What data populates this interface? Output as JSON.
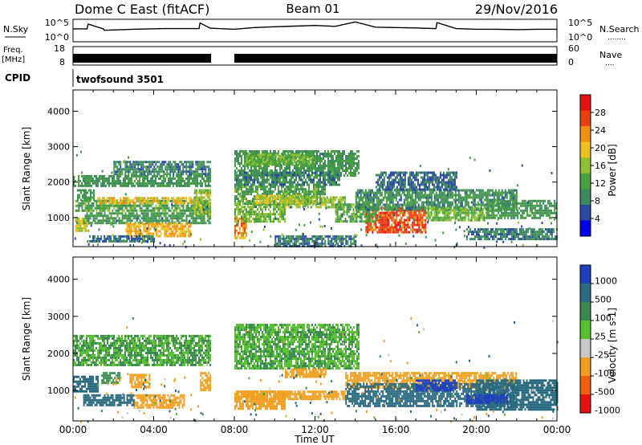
{
  "header": {
    "station": "Dome C East (fitACF)",
    "beam": "Beam 01",
    "date": "29/Nov/2016"
  },
  "side_labels": {
    "nsky": "N.Sky",
    "freq": "Freq.",
    "freq_unit": "[MHz]",
    "cpid": "CPID",
    "nsearch": "N.Search",
    "nave": "Nave",
    "dots": "........",
    "dots_short": "...."
  },
  "noise_panel": {
    "left_ticks": [
      "10^5",
      "10^0"
    ],
    "right_ticks": [
      "10^5",
      "10^0"
    ]
  },
  "freq_panel": {
    "left_ticks": [
      "18",
      "8"
    ],
    "right_ticks": [
      "60",
      "0"
    ]
  },
  "cpid_panel": {
    "label": "twofsound 3501"
  },
  "data_gap_hours": [
    6.85,
    8.0
  ],
  "chart_data": [
    {
      "type": "heatmap",
      "name": "power",
      "x_unit": "hours UT",
      "xlim": [
        0,
        24
      ],
      "ylabel": "Slant Range [km]",
      "ylim": [
        180,
        4600
      ],
      "y_ticks": [
        1000,
        2000,
        3000,
        4000
      ],
      "cb_title": "Power [dB]",
      "cb_range": [
        0,
        32
      ],
      "cb_ticks": [
        "4",
        "8",
        "12",
        "16",
        "20",
        "24",
        "28"
      ],
      "cb_tick_values": [
        4,
        8,
        12,
        16,
        20,
        24,
        28
      ],
      "colors": [
        "#0000ee",
        "#2a4aa0",
        "#3e8a60",
        "#48a040",
        "#90c030",
        "#f0c020",
        "#f09010",
        "#e84010",
        "#e81010"
      ],
      "regions": [
        {
          "t": [
            0.1,
            6.8
          ],
          "r": [
            1200,
            1500
          ],
          "v": 14
        },
        {
          "t": [
            1.2,
            6.4
          ],
          "r": [
            1380,
            1580
          ],
          "v": 22
        },
        {
          "t": [
            0.0,
            6.8
          ],
          "r": [
            1900,
            2200
          ],
          "v": 12
        },
        {
          "t": [
            2.0,
            6.8
          ],
          "r": [
            2200,
            2600
          ],
          "v": 10
        },
        {
          "t": [
            0.2,
            1.0
          ],
          "r": [
            1500,
            1800
          ],
          "v": 12
        },
        {
          "t": [
            0.1,
            0.8
          ],
          "r": [
            600,
            1000
          ],
          "v": 20
        },
        {
          "t": [
            0.5,
            6.8
          ],
          "r": [
            850,
            1150
          ],
          "v": 12
        },
        {
          "t": [
            2.6,
            5.8
          ],
          "r": [
            500,
            850
          ],
          "v": 24
        },
        {
          "t": [
            0.8,
            4.0
          ],
          "r": [
            300,
            500
          ],
          "v": 8
        },
        {
          "t": [
            6.0,
            6.8
          ],
          "r": [
            1100,
            1800
          ],
          "v": 18
        },
        {
          "t": [
            8.0,
            8.6
          ],
          "r": [
            400,
            1000
          ],
          "v": 26
        },
        {
          "t": [
            8.0,
            10.5
          ],
          "r": [
            900,
            1400
          ],
          "v": 16
        },
        {
          "t": [
            8.0,
            12.5
          ],
          "r": [
            1400,
            1900
          ],
          "v": 14
        },
        {
          "t": [
            9.0,
            11.2
          ],
          "r": [
            1400,
            1650
          ],
          "v": 20
        },
        {
          "t": [
            10.5,
            13.5
          ],
          "r": [
            1300,
            1600
          ],
          "v": 18
        },
        {
          "t": [
            8.0,
            14.2
          ],
          "r": [
            2200,
            2900
          ],
          "v": 12
        },
        {
          "t": [
            8.5,
            12.0
          ],
          "r": [
            2500,
            2800
          ],
          "v": 16
        },
        {
          "t": [
            8.0,
            13.2
          ],
          "r": [
            1900,
            2300
          ],
          "v": 10
        },
        {
          "t": [
            14.5,
            17.5
          ],
          "r": [
            600,
            1300
          ],
          "v": 30
        },
        {
          "t": [
            13.0,
            15.0
          ],
          "r": [
            900,
            1400
          ],
          "v": 14
        },
        {
          "t": [
            14.0,
            22.0
          ],
          "r": [
            1200,
            1800
          ],
          "v": 11
        },
        {
          "t": [
            17.5,
            20.5
          ],
          "r": [
            900,
            1300
          ],
          "v": 16
        },
        {
          "t": [
            20.5,
            24.0
          ],
          "r": [
            1000,
            1500
          ],
          "v": 12
        },
        {
          "t": [
            19.5,
            24.0
          ],
          "r": [
            400,
            700
          ],
          "v": 9
        },
        {
          "t": [
            15.0,
            19.0
          ],
          "r": [
            1800,
            2300
          ],
          "v": 8
        },
        {
          "t": [
            10.0,
            14.0
          ],
          "r": [
            200,
            500
          ],
          "v": 9
        }
      ],
      "scatter_rows": [
        200,
        300
      ]
    },
    {
      "type": "heatmap",
      "name": "velocity",
      "x_unit": "hours UT",
      "xlim": [
        0,
        24
      ],
      "xlabel": "Time UT",
      "x_ticks": [
        "00:00",
        "04:00",
        "08:00",
        "12:00",
        "16:00",
        "20:00",
        "00:00"
      ],
      "x_tick_hours": [
        0,
        4,
        8,
        12,
        16,
        20,
        24
      ],
      "ylabel": "Slant Range [km]",
      "ylim": [
        180,
        4600
      ],
      "y_ticks": [
        1000,
        2000,
        3000,
        4000
      ],
      "cb_title": "Velocity [m s-1]",
      "cb_ticks": [
        "1000",
        "500",
        "100",
        "25",
        "-25",
        "-100",
        "-500",
        "-1000"
      ],
      "colors": [
        "#2040c0",
        "#2a6a80",
        "#3a8a50",
        "#58c030",
        "#c8c8c8",
        "#f0a020",
        "#f06010",
        "#e81010"
      ],
      "regions": [
        {
          "t": [
            0.0,
            6.8
          ],
          "r": [
            1700,
            2500
          ],
          "v": 25
        },
        {
          "t": [
            0.0,
            1.2
          ],
          "r": [
            1000,
            1400
          ],
          "v": 150
        },
        {
          "t": [
            1.4,
            2.3
          ],
          "r": [
            1200,
            1500
          ],
          "v": 50
        },
        {
          "t": [
            2.8,
            3.8
          ],
          "r": [
            1100,
            1450
          ],
          "v": -200
        },
        {
          "t": [
            3.0,
            5.5
          ],
          "r": [
            550,
            900
          ],
          "v": -200
        },
        {
          "t": [
            0.5,
            3.0
          ],
          "r": [
            600,
            900
          ],
          "v": 300
        },
        {
          "t": [
            6.3,
            6.8
          ],
          "r": [
            1000,
            1500
          ],
          "v": -300
        },
        {
          "t": [
            8.0,
            10.5
          ],
          "r": [
            500,
            1000
          ],
          "v": -300
        },
        {
          "t": [
            8.5,
            13.5
          ],
          "r": [
            800,
            1000
          ],
          "v": -150
        },
        {
          "t": [
            8.0,
            14.2
          ],
          "r": [
            1600,
            2800
          ],
          "v": 20
        },
        {
          "t": [
            10.5,
            12.5
          ],
          "r": [
            1400,
            1600
          ],
          "v": -150
        },
        {
          "t": [
            13.5,
            22.0
          ],
          "r": [
            1100,
            1500
          ],
          "v": -150
        },
        {
          "t": [
            13.5,
            22.0
          ],
          "r": [
            600,
            1200
          ],
          "v": 300
        },
        {
          "t": [
            17.0,
            19.0
          ],
          "r": [
            1000,
            1300
          ],
          "v": 700
        },
        {
          "t": [
            20.0,
            24.0
          ],
          "r": [
            500,
            1300
          ],
          "v": 200
        },
        {
          "t": [
            19.5,
            21.5
          ],
          "r": [
            700,
            900
          ],
          "v": 700
        }
      ]
    },
    {
      "type": "line",
      "name": "sky_noise",
      "x": [
        0.0,
        0.7,
        0.75,
        1.5,
        1.55,
        3.0,
        4.5,
        6.25,
        6.3,
        6.8,
        8.0,
        9.0,
        10.0,
        11.0,
        12.0,
        13.0,
        14.0,
        15.0,
        16.0,
        17.0,
        18.0,
        18.05,
        19.0,
        20.0,
        21.0,
        22.0,
        23.0,
        24.0
      ],
      "y": [
        0.62,
        0.62,
        0.85,
        0.62,
        0.55,
        0.6,
        0.63,
        0.63,
        0.9,
        0.65,
        0.6,
        0.68,
        0.72,
        0.75,
        0.78,
        0.74,
        0.95,
        0.7,
        0.68,
        0.66,
        0.63,
        0.92,
        0.63,
        0.6,
        0.6,
        0.58,
        0.6,
        0.6
      ]
    }
  ]
}
